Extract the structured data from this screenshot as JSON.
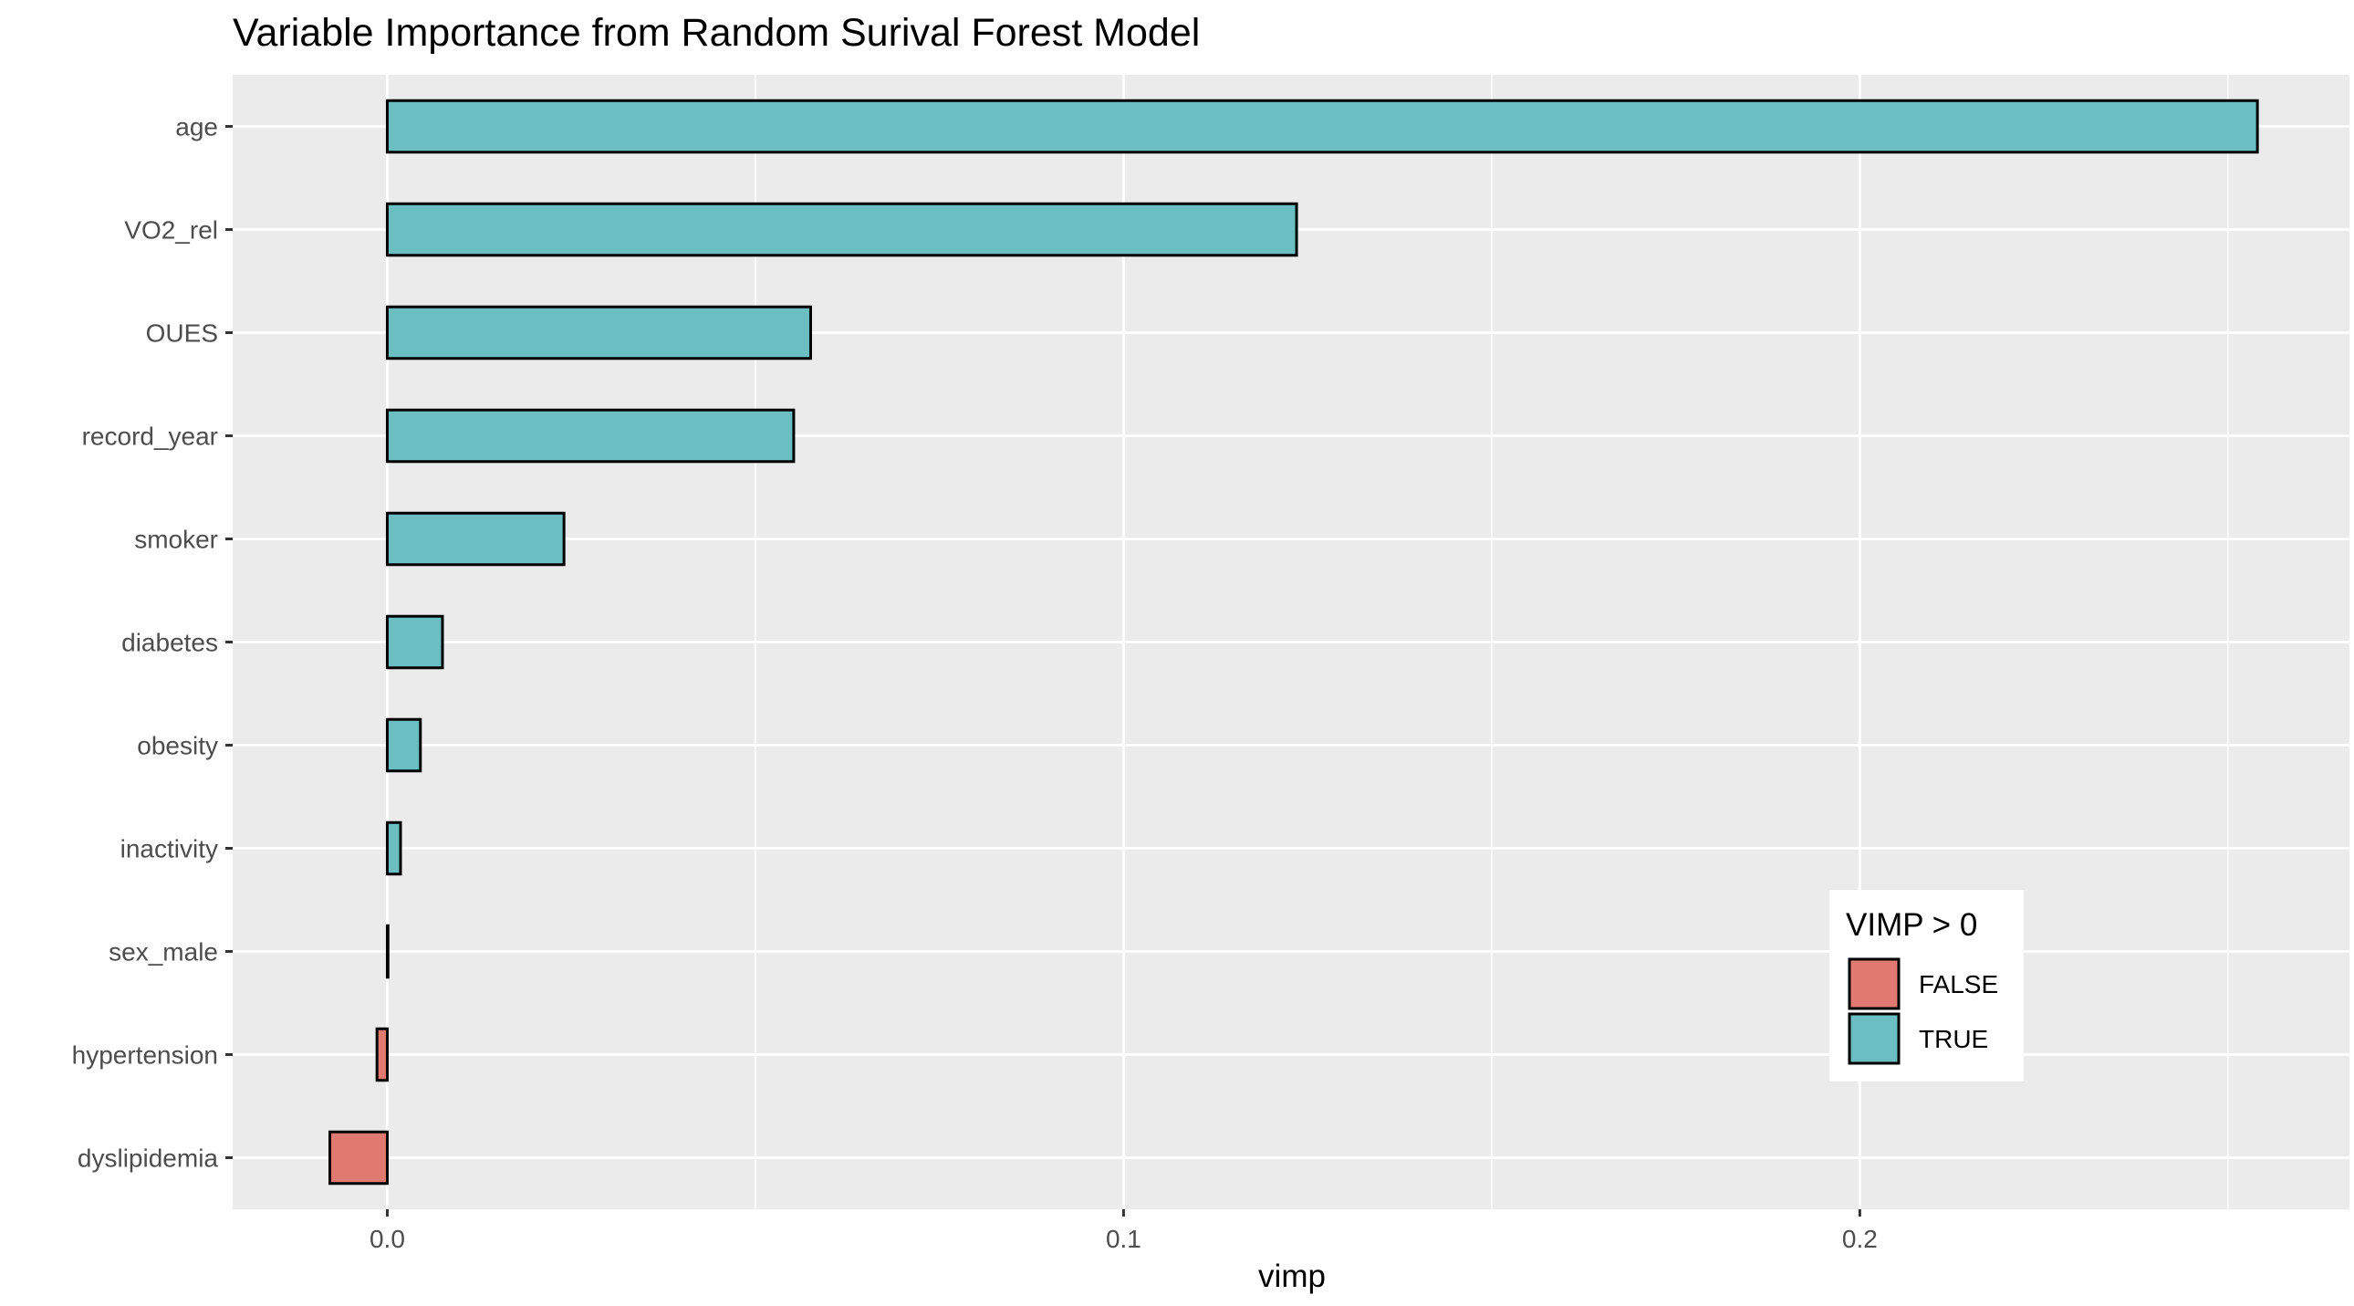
{
  "chart_data": {
    "type": "bar",
    "orientation": "horizontal",
    "title": "Variable Importance from Random Surival Forest Model",
    "xlabel": "vimp",
    "ylabel": "",
    "categories": [
      "age",
      "VO2_rel",
      "OUES",
      "record_year",
      "smoker",
      "diabetes",
      "obesity",
      "inactivity",
      "sex_male",
      "hypertension",
      "dyslipidemia"
    ],
    "values": [
      0.254,
      0.1235,
      0.0575,
      0.0552,
      0.024,
      0.0075,
      0.0045,
      0.0018,
      0.0001,
      -0.0014,
      -0.0078
    ],
    "groups": [
      "TRUE",
      "TRUE",
      "TRUE",
      "TRUE",
      "TRUE",
      "TRUE",
      "TRUE",
      "TRUE",
      "TRUE",
      "FALSE",
      "FALSE"
    ],
    "xlim": [
      -0.021,
      0.2665
    ],
    "xticks": [
      0.0,
      0.1,
      0.2
    ],
    "xtick_labels": [
      "0.0",
      "0.1",
      "0.2"
    ],
    "grid": true,
    "legend": {
      "title": "VIMP > 0",
      "placement": "bottom-right inside",
      "entries": [
        {
          "label": "FALSE",
          "color": "#E07A70"
        },
        {
          "label": "TRUE",
          "color": "#6BBFC2"
        }
      ]
    },
    "colors": {
      "panel": "#EBEBEB",
      "grid": "#FFFFFF",
      "bar_outline": "#000000",
      "false": "#E07A70",
      "true": "#6BBFC2"
    }
  }
}
